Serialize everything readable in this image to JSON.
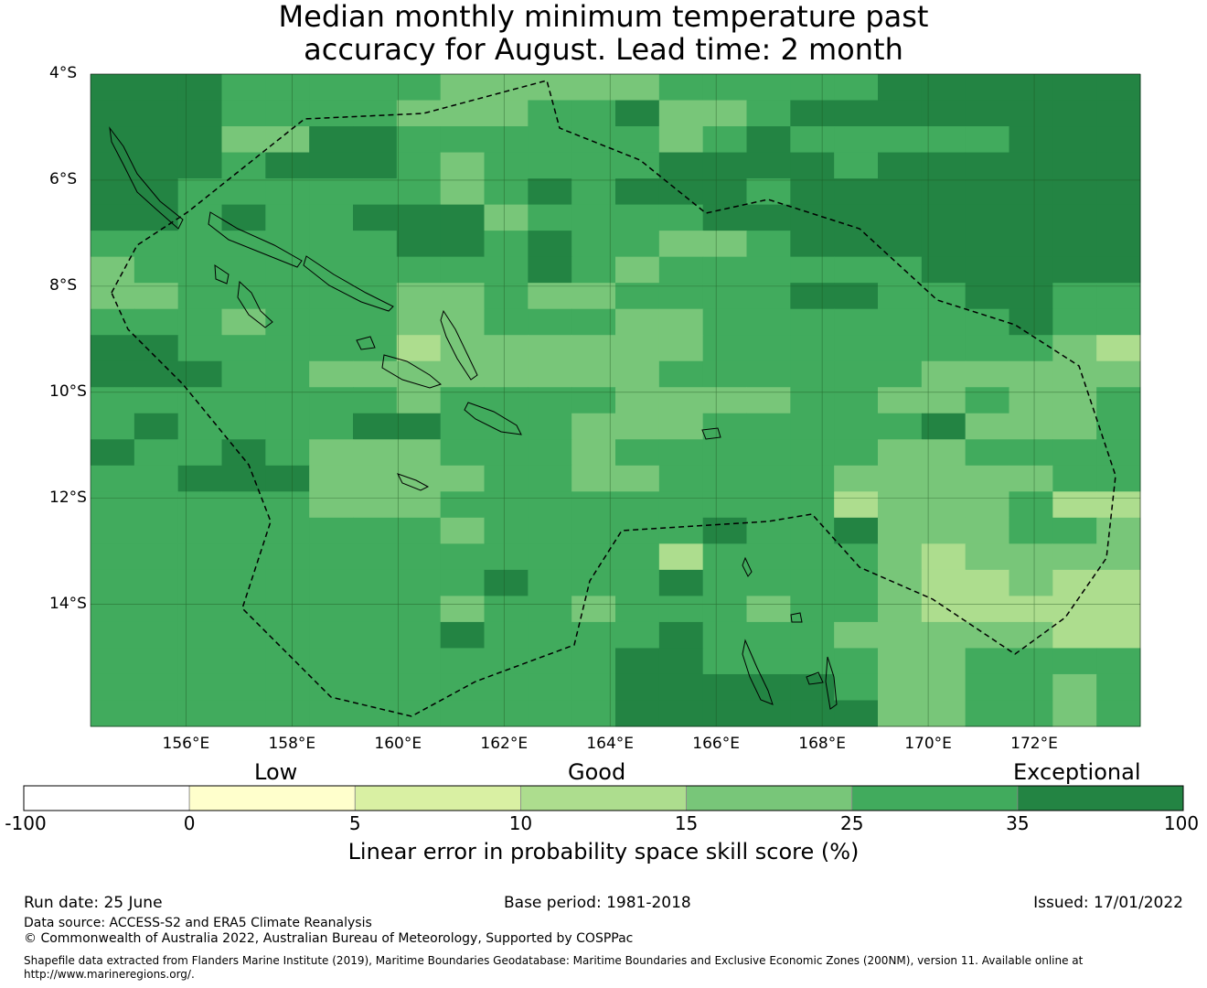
{
  "title_line1": "Median monthly minimum temperature past",
  "title_line2": "accuracy for August. Lead time: 2 month",
  "map": {
    "lon_range": [
      154.2,
      174.0
    ],
    "lat_range": [
      -16.3,
      -4.0
    ],
    "lat_labels": [
      "4°S",
      "6°S",
      "8°S",
      "10°S",
      "12°S",
      "14°S"
    ],
    "lon_labels": [
      "156°E",
      "158°E",
      "160°E",
      "162°E",
      "164°E",
      "166°E",
      "168°E",
      "170°E",
      "172°E"
    ]
  },
  "legend": {
    "categories": [
      "Low",
      "Good",
      "Exceptional"
    ],
    "ticks": [
      "-100",
      "0",
      "5",
      "10",
      "15",
      "25",
      "35",
      "100"
    ],
    "colors": [
      "#ffffff",
      "#ffffcc",
      "#d9f0a3",
      "#addd8e",
      "#78c679",
      "#41ab5d",
      "#238443"
    ],
    "label": "Linear error in probability space skill score (%)"
  },
  "footer": {
    "run_date": "Run date: 25 June",
    "base_period": "Base period: 1981-2018",
    "issued": "Issued: 17/01/2022",
    "data_source": "Data source: ACCESS-S2 and ERA5 Climate Reanalysis",
    "copyright": "© Commonwealth of Australia 2022, Australian Bureau of Meteorology, Supported by COSPPac",
    "shapefile_line1": "Shapefile data extracted from Flanders Marine Institute (2019), Maritime Boundaries Geodatabase: Maritime Boundaries and Exclusive Economic Zones (200NM), version 11. Available online at",
    "shapefile_line2": "http://www.marineregions.org/."
  }
}
